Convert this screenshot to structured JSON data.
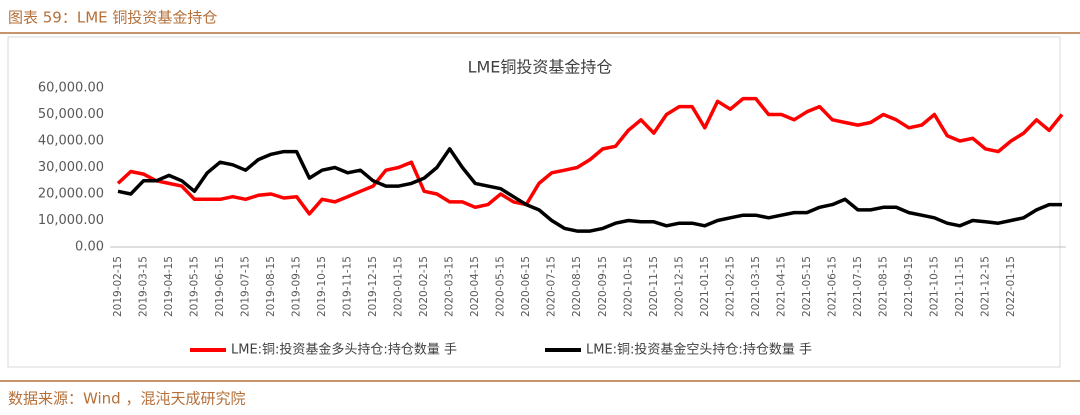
{
  "caption": "图表 59：LME 铜投资基金持仓",
  "source": "数据来源：Wind ，混沌天成研究院",
  "chart_data": {
    "type": "line",
    "title": "LME铜投资基金持仓",
    "categories": [
      "2019-02-15",
      null,
      "2019-03-15",
      null,
      "2019-04-15",
      null,
      "2019-05-15",
      null,
      "2019-06-15",
      null,
      "2019-07-15",
      null,
      "2019-08-15",
      null,
      "2019-09-15",
      null,
      "2019-10-15",
      null,
      "2019-11-15",
      null,
      "2019-12-15",
      null,
      "2020-01-15",
      null,
      "2020-02-15",
      null,
      "2020-03-15",
      null,
      "2020-04-15",
      null,
      "2020-05-15",
      null,
      "2020-06-15",
      null,
      "2020-07-15",
      null,
      "2020-08-15",
      null,
      "2020-09-15",
      null,
      "2020-10-15",
      null,
      "2020-11-15",
      null,
      "2020-12-15",
      null,
      "2021-01-15",
      null,
      "2021-02-15",
      null,
      "2021-03-15",
      null,
      "2021-04-15",
      null,
      "2021-05-15",
      null,
      "2021-06-15",
      null,
      "2021-07-15",
      null,
      "2021-08-15",
      null,
      "2021-09-15",
      null,
      "2021-10-15",
      null,
      "2021-11-15",
      null,
      "2021-12-15",
      null,
      "2022-01-15",
      null,
      null,
      null,
      null
    ],
    "series": [
      {
        "name": "LME:铜:投资基金多头持仓:持仓数量 手",
        "color": "#ff0000",
        "values": [
          24000,
          28500,
          27500,
          25000,
          24000,
          23000,
          18000,
          18000,
          18000,
          19000,
          18000,
          19500,
          20000,
          18500,
          19000,
          12500,
          18000,
          17000,
          19000,
          21000,
          23000,
          29000,
          30000,
          32000,
          21000,
          20000,
          17000,
          17000,
          15000,
          16000,
          20000,
          17000,
          16000,
          24000,
          28000,
          29000,
          30000,
          33000,
          37000,
          38000,
          44000,
          48000,
          43000,
          50000,
          53000,
          53000,
          45000,
          55000,
          52000,
          56000,
          56000,
          50000,
          50000,
          48000,
          51000,
          53000,
          48000,
          47000,
          46000,
          47000,
          50000,
          48000,
          45000,
          46000,
          50000,
          42000,
          40000,
          41000,
          37000,
          36000,
          40000,
          43000,
          48000,
          44000,
          50000
        ]
      },
      {
        "name": "LME:铜:投资基金空头持仓:持仓数量 手",
        "color": "#000000",
        "values": [
          21000,
          20000,
          25000,
          25000,
          27000,
          25000,
          21000,
          28000,
          32000,
          31000,
          29000,
          33000,
          35000,
          36000,
          36000,
          26000,
          29000,
          30000,
          28000,
          29000,
          25000,
          23000,
          23000,
          24000,
          26000,
          30000,
          37000,
          30000,
          24000,
          23000,
          22000,
          19000,
          16000,
          14000,
          10000,
          7000,
          6000,
          6000,
          7000,
          9000,
          10000,
          9500,
          9500,
          8000,
          9000,
          9000,
          8000,
          10000,
          11000,
          12000,
          12000,
          11000,
          12000,
          13000,
          13000,
          15000,
          16000,
          18000,
          14000,
          14000,
          15000,
          15000,
          13000,
          12000,
          11000,
          9000,
          8000,
          10000,
          9500,
          9000,
          10000,
          11000,
          14000,
          16000,
          16000
        ]
      }
    ],
    "ylim": [
      0,
      60000
    ],
    "yticks": [
      {
        "value": 0,
        "label": "0.00"
      },
      {
        "value": 10000,
        "label": "10,000.00"
      },
      {
        "value": 20000,
        "label": "20,000.00"
      },
      {
        "value": 30000,
        "label": "30,000.00"
      },
      {
        "value": 40000,
        "label": "40,000.00"
      },
      {
        "value": 50000,
        "label": "50,000.00"
      },
      {
        "value": 60000,
        "label": "60,000.00"
      }
    ],
    "grid": false,
    "legend": "bottom"
  }
}
